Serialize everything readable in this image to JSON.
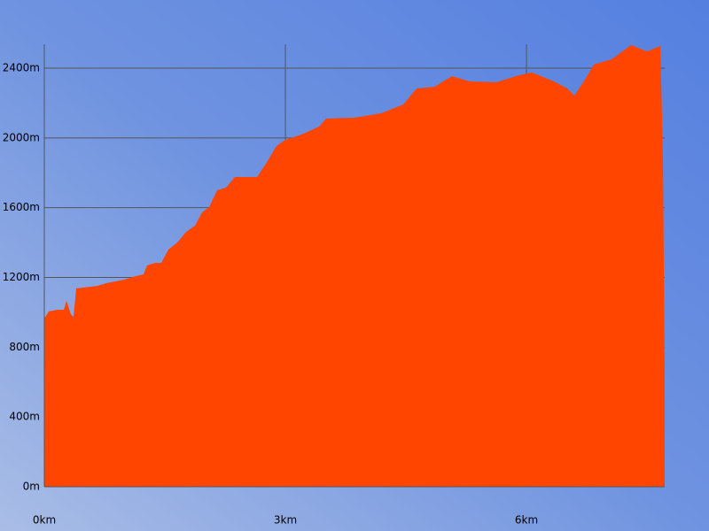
{
  "chart_data": {
    "type": "area",
    "x": [
      0,
      0.055,
      0.165,
      0.243,
      0.276,
      0.331,
      0.364,
      0.397,
      0.662,
      0.772,
      0.993,
      1.103,
      1.235,
      1.279,
      1.379,
      1.456,
      1.544,
      1.654,
      1.765,
      1.875,
      1.963,
      2.051,
      2.151,
      2.261,
      2.371,
      2.647,
      2.757,
      2.89,
      3.0,
      3.198,
      3.419,
      3.507,
      3.86,
      4.191,
      4.467,
      4.632,
      4.853,
      5.073,
      5.294,
      5.625,
      5.901,
      6.066,
      6.342,
      6.507,
      6.596,
      6.728,
      6.838,
      7.059,
      7.301,
      7.5,
      7.665,
      7.698,
      7.72
    ],
    "values": [
      964,
      1005,
      1015,
      1015,
      1066,
      989,
      974,
      1137,
      1152,
      1167,
      1187,
      1203,
      1218,
      1269,
      1284,
      1284,
      1360,
      1400,
      1461,
      1497,
      1573,
      1603,
      1700,
      1715,
      1776,
      1776,
      1852,
      1954,
      1989,
      2019,
      2065,
      2111,
      2116,
      2141,
      2192,
      2283,
      2293,
      2354,
      2324,
      2319,
      2359,
      2375,
      2324,
      2283,
      2243,
      2334,
      2420,
      2451,
      2532,
      2496,
      2527,
      1903,
      609
    ],
    "color": "#ff4500",
    "xlim": [
      0,
      7.72
    ],
    "xticks": [
      {
        "value": 0,
        "label": "0km"
      },
      {
        "value": 3,
        "label": "3km"
      },
      {
        "value": 6,
        "label": "6km"
      }
    ],
    "ylim": [
      0,
      2537
    ],
    "yticks": [
      {
        "value": 0,
        "label": "0m"
      },
      {
        "value": 400,
        "label": "400m"
      },
      {
        "value": 800,
        "label": "800m"
      },
      {
        "value": 1200,
        "label": "1200m"
      },
      {
        "value": 1600,
        "label": "1600m"
      },
      {
        "value": 2000,
        "label": "2000m"
      },
      {
        "value": 2400,
        "label": "2400m"
      }
    ],
    "grid": true
  }
}
